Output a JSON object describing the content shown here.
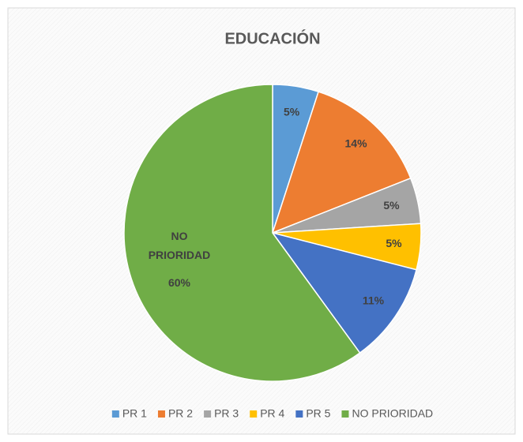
{
  "chart_data": {
    "type": "pie",
    "title": "EDUCACIÓN",
    "categories": [
      "PR 1",
      "PR 2",
      "PR 3",
      "PR 4",
      "PR 5",
      "NO PRIORIDAD"
    ],
    "values": [
      5,
      14,
      5,
      5,
      11,
      60
    ],
    "value_labels": [
      "5%",
      "14%",
      "5%",
      "5%",
      "11%",
      "60%"
    ],
    "colors": [
      "#5b9bd5",
      "#ed7d31",
      "#a5a5a5",
      "#ffc000",
      "#4472c4",
      "#70ad47"
    ],
    "legend": "bottom"
  }
}
